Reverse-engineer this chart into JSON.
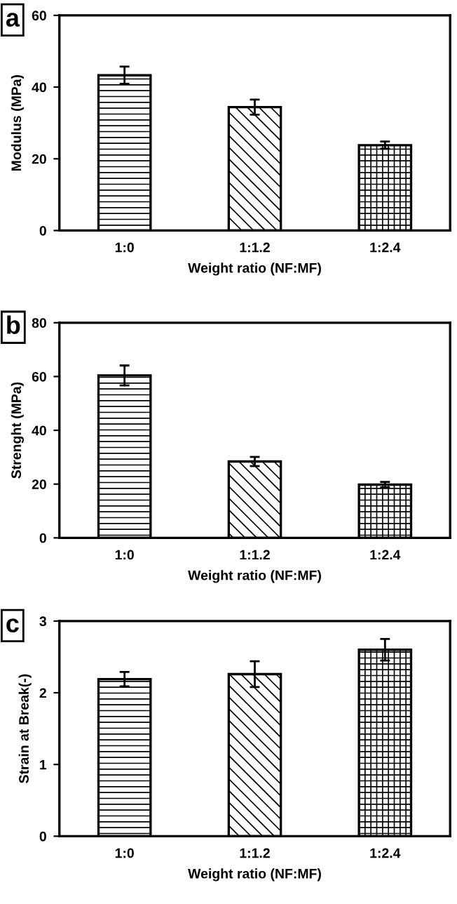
{
  "chart_data": [
    {
      "type": "bar",
      "annotations": [
        "a"
      ],
      "categories": [
        "1:0",
        "1:1.2",
        "1:2.4"
      ],
      "xlabel": "Weight ratio (NF:MF)",
      "ylabel": "Modulus (MPa)",
      "values": [
        43.3,
        34.4,
        23.8
      ],
      "errors": [
        2.4,
        2.1,
        1.0
      ],
      "ylim": [
        0,
        60
      ],
      "yticks": [
        0,
        20,
        40,
        60
      ],
      "grid": false
    },
    {
      "type": "bar",
      "annotations": [
        "b"
      ],
      "categories": [
        "1:0",
        "1:1.2",
        "1:2.4"
      ],
      "xlabel": "Weight ratio (NF:MF)",
      "ylabel": "Strenght (MPa)",
      "values": [
        60.4,
        28.4,
        19.8
      ],
      "errors": [
        3.7,
        1.7,
        1.0
      ],
      "ylim": [
        0,
        80
      ],
      "yticks": [
        0,
        20,
        40,
        60,
        80
      ],
      "grid": false
    },
    {
      "type": "bar",
      "annotations": [
        "c"
      ],
      "categories": [
        "1:0",
        "1:1.2",
        "1:2.4"
      ],
      "xlabel": "Weight ratio (NF:MF)",
      "ylabel": "Strain at Break(-)",
      "values": [
        2.19,
        2.26,
        2.6
      ],
      "errors": [
        0.1,
        0.18,
        0.15
      ],
      "ylim": [
        0,
        3
      ],
      "yticks": [
        0,
        1,
        2,
        3
      ],
      "grid": false
    }
  ]
}
